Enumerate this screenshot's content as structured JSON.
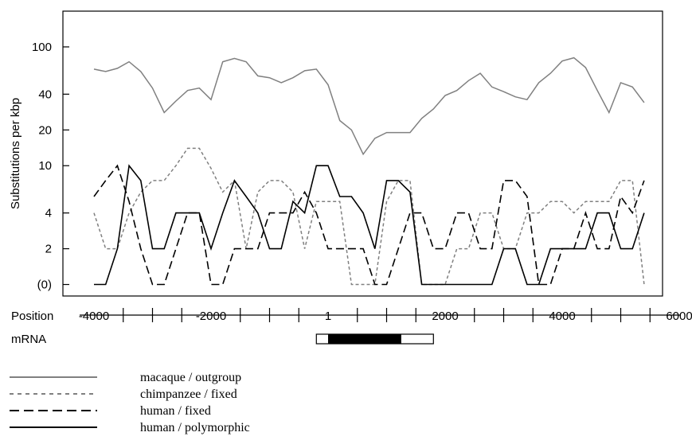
{
  "chart_data": {
    "type": "line",
    "ylabel": "Substitutions per kbp",
    "xlabel": "Position",
    "y_scale": "log",
    "ylim": [
      0.8,
      200
    ],
    "xlim": [
      -4400,
      6000
    ],
    "y_ticks": [
      {
        "value": 1,
        "label": "(0)"
      },
      {
        "value": 2,
        "label": "2"
      },
      {
        "value": 4,
        "label": "4"
      },
      {
        "value": 10,
        "label": "10"
      },
      {
        "value": 20,
        "label": "20"
      },
      {
        "value": 40,
        "label": "40"
      },
      {
        "value": 100,
        "label": "100"
      }
    ],
    "x_ticks": [
      {
        "value": -4000,
        "label": "-4000"
      },
      {
        "value": -2000,
        "label": "-2000"
      },
      {
        "value": 1,
        "label": "1"
      },
      {
        "value": 2000,
        "label": "2000"
      },
      {
        "value": 4000,
        "label": "4000"
      },
      {
        "value": 6000,
        "label": "6000"
      }
    ],
    "x_minor_ticks": [
      -3500,
      -3000,
      -2500,
      -1500,
      -1000,
      -500,
      500,
      1000,
      1500,
      2500,
      3000,
      3500,
      4500,
      5000,
      5500
    ],
    "mrna": {
      "label": "mRNA",
      "start": -200,
      "end": 1800,
      "cds_start": 0,
      "cds_end": 1250,
      "cds_color": "#000000"
    },
    "series": [
      {
        "name": "macaque / outgroup",
        "color": "#808080",
        "dash": "solid",
        "x": [
          -4000,
          -3800,
          -3600,
          -3400,
          -3200,
          -3000,
          -2800,
          -2600,
          -2400,
          -2200,
          -2000,
          -1800,
          -1600,
          -1400,
          -1200,
          -1000,
          -800,
          -600,
          -400,
          -200,
          0,
          200,
          400,
          600,
          800,
          1000,
          1200,
          1400,
          1600,
          1800,
          2000,
          2200,
          2400,
          2600,
          2800,
          3000,
          3200,
          3400,
          3600,
          3800,
          4000,
          4200,
          4400,
          4600,
          4800,
          5000,
          5200,
          5400
        ],
        "values": [
          65,
          62,
          66,
          75,
          62,
          45,
          28,
          35,
          43,
          45,
          36,
          75,
          80,
          75,
          57,
          55,
          50,
          55,
          63,
          65,
          48,
          24,
          20,
          12.5,
          17,
          19,
          19,
          19,
          25,
          30,
          39,
          43,
          52,
          60,
          46,
          42,
          38,
          36,
          50,
          60,
          76,
          81,
          67,
          43,
          28,
          50,
          46,
          34
        ]
      },
      {
        "name": "chimpanzee / fixed",
        "color": "#808080",
        "dash": "dotted",
        "x": [
          -4000,
          -3800,
          -3600,
          -3400,
          -3200,
          -3000,
          -2800,
          -2600,
          -2400,
          -2200,
          -2000,
          -1800,
          -1600,
          -1400,
          -1200,
          -1000,
          -800,
          -600,
          -400,
          -200,
          0,
          200,
          400,
          600,
          800,
          1000,
          1200,
          1400,
          1600,
          1800,
          2000,
          2200,
          2400,
          2600,
          2800,
          3000,
          3200,
          3400,
          3600,
          3800,
          4000,
          4200,
          4400,
          4600,
          4800,
          5000,
          5200,
          5400
        ],
        "values": [
          4,
          2,
          2,
          4,
          6,
          7.5,
          7.5,
          10,
          14,
          14,
          9.5,
          6,
          7.5,
          2,
          6,
          7.5,
          7.5,
          6,
          2,
          5,
          5,
          5,
          1,
          1,
          1,
          5,
          7.5,
          7.5,
          1,
          1,
          1,
          2,
          2,
          4,
          4,
          2,
          2,
          4,
          4,
          5,
          5,
          4,
          5,
          5,
          5,
          7.5,
          7.5,
          1
        ]
      },
      {
        "name": "human / fixed",
        "color": "#000000",
        "dash": "dashed",
        "x": [
          -4000,
          -3800,
          -3600,
          -3400,
          -3200,
          -3000,
          -2800,
          -2600,
          -2400,
          -2200,
          -2000,
          -1800,
          -1600,
          -1400,
          -1200,
          -1000,
          -800,
          -600,
          -400,
          -200,
          0,
          200,
          400,
          600,
          800,
          1000,
          1200,
          1400,
          1600,
          1800,
          2000,
          2200,
          2400,
          2600,
          2800,
          3000,
          3200,
          3400,
          3600,
          3800,
          4000,
          4200,
          4400,
          4600,
          4800,
          5000,
          5200,
          5400
        ],
        "values": [
          5.5,
          7.5,
          10,
          5,
          2,
          1,
          1,
          2,
          4,
          4,
          1,
          1,
          2,
          2,
          2,
          4,
          4,
          4,
          6,
          4,
          2,
          2,
          2,
          2,
          1,
          1,
          2,
          4,
          4,
          2,
          2,
          4,
          4,
          2,
          2,
          7.5,
          7.5,
          5.5,
          1,
          1,
          2,
          2,
          4,
          2,
          2,
          5.5,
          4,
          7.5
        ]
      },
      {
        "name": "human / polymorphic",
        "color": "#000000",
        "dash": "solid",
        "x": [
          -4000,
          -3800,
          -3600,
          -3400,
          -3200,
          -3000,
          -2800,
          -2600,
          -2400,
          -2200,
          -2000,
          -1800,
          -1600,
          -1400,
          -1200,
          -1000,
          -800,
          -600,
          -400,
          -200,
          0,
          200,
          400,
          600,
          800,
          1000,
          1200,
          1400,
          1600,
          1800,
          2000,
          2200,
          2400,
          2600,
          2800,
          3000,
          3200,
          3400,
          3600,
          3800,
          4000,
          4200,
          4400,
          4600,
          4800,
          5000,
          5200,
          5400
        ],
        "values": [
          1,
          1,
          2,
          10,
          7.5,
          2,
          2,
          4,
          4,
          4,
          2,
          4,
          7.5,
          5.5,
          4,
          2,
          2,
          5,
          4,
          10,
          10,
          5.5,
          5.5,
          4,
          2,
          7.5,
          7.5,
          6,
          1,
          1,
          1,
          1,
          1,
          1,
          1,
          2,
          2,
          1,
          1,
          2,
          2,
          2,
          2,
          4,
          4,
          2,
          2,
          4
        ]
      }
    ]
  }
}
